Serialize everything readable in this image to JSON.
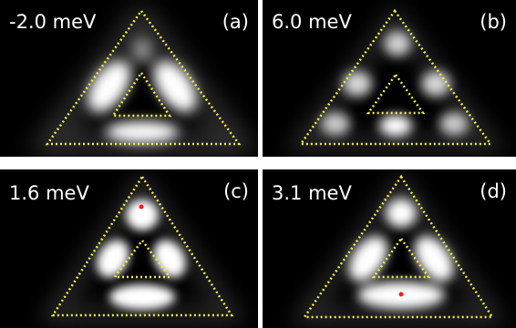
{
  "panels": [
    {
      "id": "a",
      "energy_label": "-2.0 meV",
      "letter": "(a)"
    },
    {
      "id": "b",
      "energy_label": "6.0 meV",
      "letter": "(b)"
    },
    {
      "id": "c",
      "energy_label": "1.6 meV",
      "letter": "(c)"
    },
    {
      "id": "d",
      "energy_label": "3.1 meV",
      "letter": "(d)"
    }
  ],
  "colors": {
    "background": "#000000",
    "dotted_outline": "#f2ea4a",
    "marker": "#ff1a1a",
    "text": "#ffffff"
  }
}
